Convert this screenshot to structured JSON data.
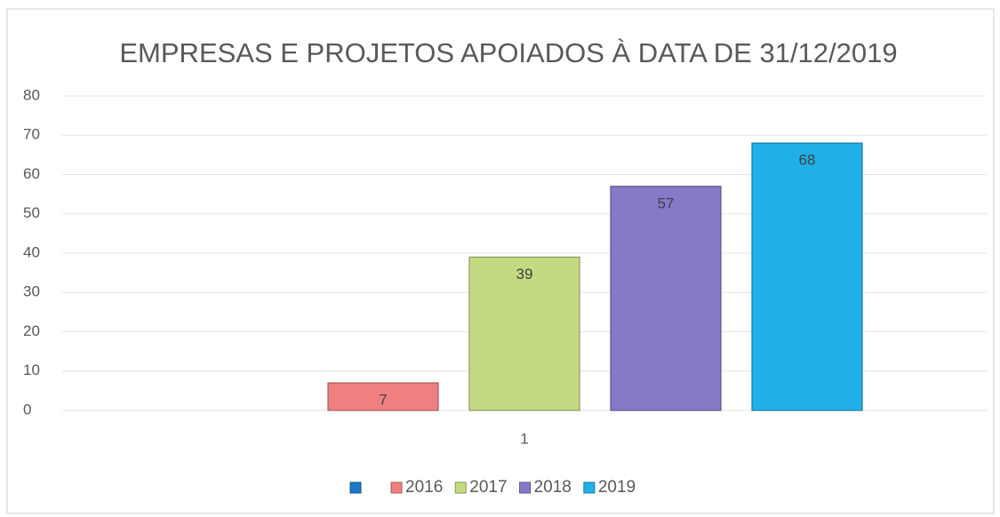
{
  "chart_data": {
    "type": "bar",
    "title": "EMPRESAS E PROJETOS APOIADOS À DATA DE 31/12/2019",
    "categories": [
      "1"
    ],
    "series": [
      {
        "color": "#1e78c8",
        "values": [
          null
        ]
      },
      {
        "name": "2016",
        "color": "#f08080",
        "values": [
          7
        ]
      },
      {
        "name": "2017",
        "color": "#c4da80",
        "values": [
          39
        ]
      },
      {
        "name": "2018",
        "color": "#8778c8",
        "values": [
          57
        ]
      },
      {
        "name": "2019",
        "color": "#20b0e8",
        "values": [
          68
        ]
      }
    ],
    "ylim": [
      0,
      80
    ],
    "yticks": [
      0,
      10,
      20,
      30,
      40,
      50,
      60,
      70,
      80
    ],
    "grid": true,
    "legend": "bottom"
  }
}
